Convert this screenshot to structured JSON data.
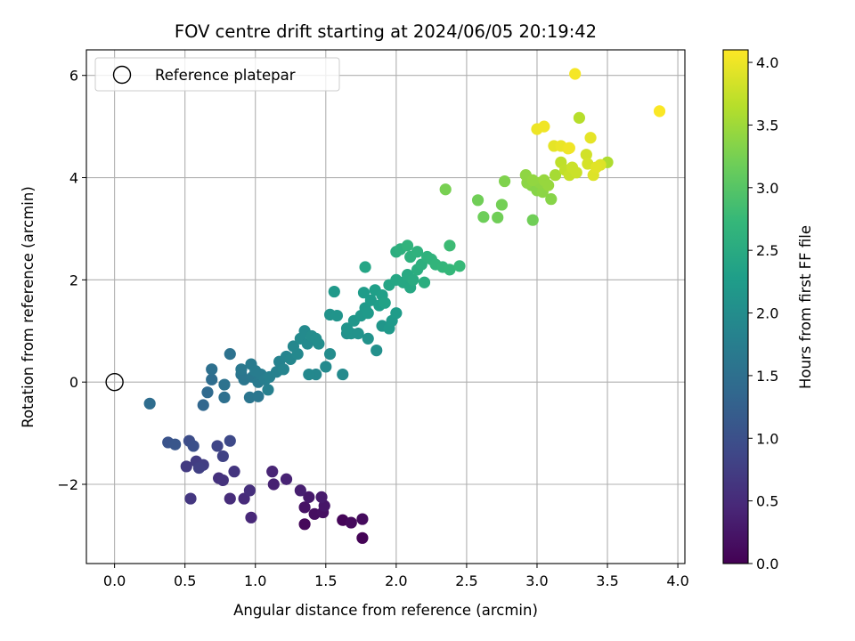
{
  "chart_data": {
    "type": "scatter",
    "title": "FOV centre drift starting at 2024/06/05 20:19:42",
    "xlabel": "Angular distance from reference (arcmin)",
    "ylabel": "Rotation from reference (arcmin)",
    "xlim": [
      -0.2,
      4.05
    ],
    "ylim": [
      -3.55,
      6.5
    ],
    "xticks": [
      0.0,
      0.5,
      1.0,
      1.5,
      2.0,
      2.5,
      3.0,
      3.5,
      4.0
    ],
    "xtick_labels": [
      "0.0",
      "0.5",
      "1.0",
      "1.5",
      "2.0",
      "2.5",
      "3.0",
      "3.5",
      "4.0"
    ],
    "yticks": [
      -2,
      0,
      2,
      4,
      6
    ],
    "ytick_labels": [
      "−2",
      "0",
      "2",
      "4",
      "6"
    ],
    "grid": true,
    "legend": {
      "placement": "top-left",
      "entries": [
        "Reference platepar"
      ]
    },
    "colorbar": {
      "label": "Hours from first FF file",
      "colormap": "viridis",
      "range": [
        0.0,
        4.1
      ],
      "ticks": [
        0.0,
        0.5,
        1.0,
        1.5,
        2.0,
        2.5,
        3.0,
        3.5,
        4.0
      ],
      "tick_labels": [
        "0.0",
        "0.5",
        "1.0",
        "1.5",
        "2.0",
        "2.5",
        "3.0",
        "3.5",
        "4.0"
      ]
    },
    "reference_point": {
      "name": "Reference platepar",
      "x": 0.0,
      "y": 0.0
    },
    "series": [
      {
        "points": [
          [
            1.76,
            -3.05,
            0.03
          ],
          [
            1.35,
            -2.78,
            0.08
          ],
          [
            1.62,
            -2.7,
            0.05
          ],
          [
            1.68,
            -2.75,
            0.1
          ],
          [
            1.76,
            -2.68,
            0.12
          ],
          [
            1.42,
            -2.58,
            0.15
          ],
          [
            1.48,
            -2.55,
            0.18
          ],
          [
            1.35,
            -2.45,
            0.2
          ],
          [
            1.49,
            -2.42,
            0.25
          ],
          [
            1.38,
            -2.25,
            0.28
          ],
          [
            1.47,
            -2.25,
            0.3
          ],
          [
            1.32,
            -2.12,
            0.35
          ],
          [
            1.13,
            -2.0,
            0.38
          ],
          [
            1.22,
            -1.9,
            0.4
          ],
          [
            1.12,
            -1.75,
            0.42
          ],
          [
            0.97,
            -2.65,
            0.46
          ],
          [
            0.92,
            -2.28,
            0.5
          ],
          [
            0.82,
            -2.28,
            0.52
          ],
          [
            0.96,
            -2.12,
            0.55
          ],
          [
            0.74,
            -1.88,
            0.58
          ],
          [
            0.77,
            -1.92,
            0.6
          ],
          [
            0.85,
            -1.75,
            0.63
          ],
          [
            0.54,
            -2.28,
            0.66
          ],
          [
            0.51,
            -1.65,
            0.7
          ],
          [
            0.58,
            -1.55,
            0.72
          ],
          [
            0.63,
            -1.62,
            0.75
          ],
          [
            0.6,
            -1.68,
            0.78
          ],
          [
            0.77,
            -1.45,
            0.8
          ],
          [
            0.73,
            -1.25,
            0.85
          ],
          [
            0.82,
            -1.15,
            0.9
          ],
          [
            0.53,
            -1.15,
            0.95
          ],
          [
            0.56,
            -1.25,
            1.0
          ],
          [
            0.38,
            -1.18,
            1.05
          ],
          [
            0.43,
            -1.22,
            1.1
          ],
          [
            0.25,
            -0.42,
            1.45
          ],
          [
            0.63,
            -0.45,
            1.35
          ],
          [
            0.66,
            -0.2,
            1.4
          ],
          [
            0.69,
            0.05,
            1.45
          ],
          [
            0.69,
            0.25,
            1.5
          ],
          [
            0.78,
            -0.05,
            1.55
          ],
          [
            0.78,
            -0.3,
            1.5
          ],
          [
            0.82,
            0.55,
            1.55
          ],
          [
            0.9,
            0.15,
            1.6
          ],
          [
            0.92,
            0.05,
            1.62
          ],
          [
            0.9,
            0.25,
            1.65
          ],
          [
            0.96,
            -0.3,
            1.6
          ],
          [
            0.98,
            0.1,
            1.65
          ],
          [
            0.97,
            0.35,
            1.7
          ],
          [
            1.0,
            0.22,
            1.72
          ],
          [
            1.02,
            -0.28,
            1.62
          ],
          [
            1.02,
            0.0,
            1.68
          ],
          [
            1.04,
            0.15,
            1.72
          ],
          [
            1.07,
            0.05,
            1.75
          ],
          [
            1.09,
            -0.15,
            1.78
          ],
          [
            1.1,
            0.1,
            1.78
          ],
          [
            1.15,
            0.2,
            1.8
          ],
          [
            1.17,
            0.4,
            1.83
          ],
          [
            1.2,
            0.25,
            1.85
          ],
          [
            1.22,
            0.5,
            1.85
          ],
          [
            1.25,
            0.45,
            1.88
          ],
          [
            1.27,
            0.7,
            1.9
          ],
          [
            1.3,
            0.55,
            1.92
          ],
          [
            1.32,
            0.85,
            1.95
          ],
          [
            1.35,
            1.0,
            1.95
          ],
          [
            1.37,
            0.75,
            1.95
          ],
          [
            1.4,
            0.9,
            1.98
          ],
          [
            1.43,
            0.85,
            2.0
          ],
          [
            1.45,
            0.75,
            2.0
          ],
          [
            1.43,
            0.15,
            1.9
          ],
          [
            1.38,
            0.15,
            1.92
          ],
          [
            1.5,
            0.3,
            1.95
          ],
          [
            1.53,
            0.55,
            1.98
          ],
          [
            1.62,
            0.15,
            1.95
          ],
          [
            1.53,
            1.32,
            2.1
          ],
          [
            1.58,
            1.3,
            2.12
          ],
          [
            1.56,
            1.77,
            2.2
          ],
          [
            1.65,
            0.95,
            2.05
          ],
          [
            1.68,
            0.95,
            2.1
          ],
          [
            1.73,
            0.95,
            2.1
          ],
          [
            1.65,
            1.05,
            2.12
          ],
          [
            1.7,
            1.2,
            2.15
          ],
          [
            1.75,
            1.3,
            2.18
          ],
          [
            1.78,
            1.45,
            2.2
          ],
          [
            1.8,
            1.35,
            2.22
          ],
          [
            1.82,
            1.6,
            2.25
          ],
          [
            1.77,
            1.75,
            2.25
          ],
          [
            1.85,
            1.8,
            2.3
          ],
          [
            1.88,
            1.5,
            2.28
          ],
          [
            1.9,
            1.7,
            2.32
          ],
          [
            1.92,
            1.55,
            2.35
          ],
          [
            1.78,
            2.25,
            2.4
          ],
          [
            1.8,
            0.85,
            2.08
          ],
          [
            1.86,
            0.62,
            2.05
          ],
          [
            1.9,
            1.1,
            2.15
          ],
          [
            1.95,
            1.05,
            2.2
          ],
          [
            1.97,
            1.2,
            2.22
          ],
          [
            2.0,
            1.35,
            2.25
          ],
          [
            1.95,
            1.9,
            2.4
          ],
          [
            2.0,
            2.0,
            2.42
          ],
          [
            2.05,
            1.95,
            2.45
          ],
          [
            2.08,
            2.1,
            2.48
          ],
          [
            2.1,
            1.85,
            2.45
          ],
          [
            2.12,
            2.0,
            2.5
          ],
          [
            2.15,
            2.2,
            2.55
          ],
          [
            2.18,
            2.3,
            2.58
          ],
          [
            2.22,
            2.45,
            2.62
          ],
          [
            2.25,
            2.4,
            2.65
          ],
          [
            2.2,
            1.95,
            2.55
          ],
          [
            2.28,
            2.3,
            2.68
          ],
          [
            2.33,
            2.25,
            2.7
          ],
          [
            2.38,
            2.2,
            2.72
          ],
          [
            2.45,
            2.27,
            2.75
          ],
          [
            2.38,
            2.67,
            2.8
          ],
          [
            2.15,
            2.55,
            2.62
          ],
          [
            2.08,
            2.67,
            2.65
          ],
          [
            2.1,
            2.45,
            2.6
          ],
          [
            2.0,
            2.55,
            2.55
          ],
          [
            2.03,
            2.6,
            2.58
          ],
          [
            2.35,
            3.77,
            3.25
          ],
          [
            2.58,
            3.56,
            3.2
          ],
          [
            2.62,
            3.23,
            3.18
          ],
          [
            2.72,
            3.22,
            3.2
          ],
          [
            2.75,
            3.47,
            3.22
          ],
          [
            2.77,
            3.93,
            3.3
          ],
          [
            2.92,
            4.05,
            3.4
          ],
          [
            2.93,
            3.9,
            3.38
          ],
          [
            2.96,
            3.85,
            3.35
          ],
          [
            3.0,
            3.75,
            3.35
          ],
          [
            3.02,
            3.9,
            3.4
          ],
          [
            2.97,
            3.95,
            3.42
          ],
          [
            3.04,
            3.72,
            3.38
          ],
          [
            3.05,
            3.95,
            3.45
          ],
          [
            3.08,
            3.85,
            3.45
          ],
          [
            3.1,
            3.58,
            3.35
          ],
          [
            2.97,
            3.17,
            3.2
          ],
          [
            3.13,
            4.05,
            3.55
          ],
          [
            3.17,
            4.3,
            3.7
          ],
          [
            3.2,
            4.15,
            3.72
          ],
          [
            3.23,
            4.05,
            3.75
          ],
          [
            3.25,
            4.2,
            3.78
          ],
          [
            3.28,
            4.1,
            3.78
          ],
          [
            3.35,
            4.45,
            3.82
          ],
          [
            3.36,
            4.27,
            3.85
          ],
          [
            3.4,
            4.05,
            3.9
          ],
          [
            3.42,
            4.2,
            3.92
          ],
          [
            3.45,
            4.25,
            3.9
          ],
          [
            3.5,
            4.3,
            3.6
          ],
          [
            3.38,
            4.78,
            3.95
          ],
          [
            3.3,
            5.17,
            3.65
          ],
          [
            3.12,
            4.62,
            3.95
          ],
          [
            3.17,
            4.62,
            3.98
          ],
          [
            3.22,
            4.57,
            4.0
          ],
          [
            3.23,
            4.58,
            4.02
          ],
          [
            3.0,
            4.95,
            4.0
          ],
          [
            3.05,
            5.0,
            4.02
          ],
          [
            3.27,
            6.03,
            4.05
          ],
          [
            3.87,
            5.3,
            4.08
          ]
        ]
      }
    ]
  }
}
